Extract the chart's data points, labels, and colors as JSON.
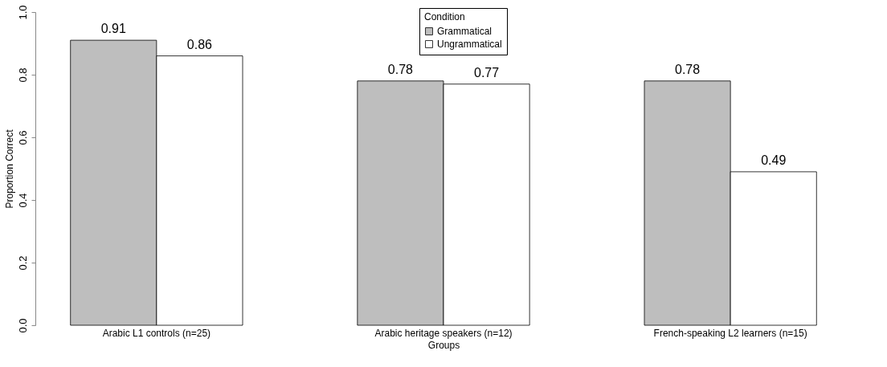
{
  "chart_data": {
    "type": "bar",
    "xlabel": "Groups",
    "ylabel": "Proportion Correct",
    "legend_title": "Condition",
    "legend": "top",
    "grid": false,
    "data_labels": true,
    "categories": [
      "Arabic L1 controls (n=25)",
      "Arabic heritage speakers (n=12)",
      "French-speaking L2 learners (n=15)"
    ],
    "series": [
      {
        "name": "Grammatical",
        "color": "#bebebe",
        "values": [
          0.91,
          0.78,
          0.78
        ]
      },
      {
        "name": "Ungrammatical",
        "color": "#ffffff",
        "values": [
          0.86,
          0.77,
          0.49
        ]
      }
    ],
    "ylim": [
      0,
      1
    ],
    "yticks": [
      {
        "value": 0,
        "label": "0.0"
      },
      {
        "value": 0.2,
        "label": "0.2"
      },
      {
        "value": 0.4,
        "label": "0.4"
      },
      {
        "value": 0.6,
        "label": "0.6"
      },
      {
        "value": 0.8,
        "label": "0.8"
      },
      {
        "value": 1,
        "label": "1.0"
      }
    ]
  }
}
